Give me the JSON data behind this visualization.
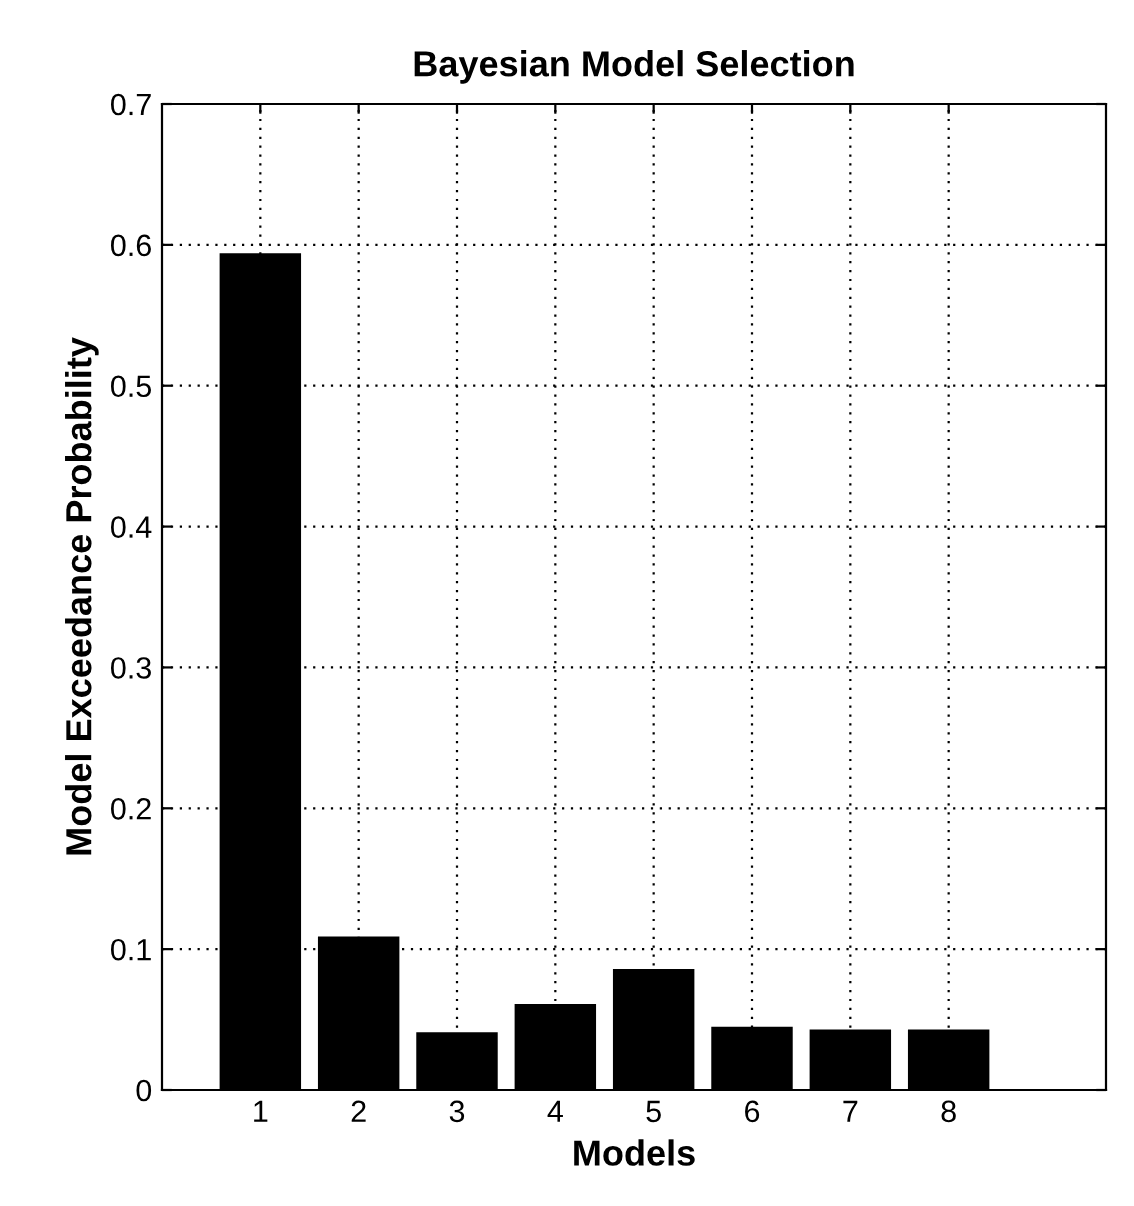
{
  "chart_data": {
    "type": "bar",
    "title": "Bayesian Model Selection",
    "xlabel": "Models",
    "ylabel": "Model Exceedance Probability",
    "x": [
      1,
      2,
      3,
      4,
      5,
      6,
      7,
      8
    ],
    "values": [
      0.593,
      0.108,
      0.04,
      0.06,
      0.085,
      0.044,
      0.042,
      0.042
    ],
    "color": "#000000",
    "xlim": [
      0,
      9.6
    ],
    "xticks": [
      1,
      2,
      3,
      4,
      5,
      6,
      7,
      8
    ],
    "ylim": [
      0,
      0.7
    ],
    "yticks": [
      0,
      0.1,
      0.2,
      0.3,
      0.4,
      0.5,
      0.6,
      0.7
    ],
    "grid": true,
    "legend": false
  }
}
